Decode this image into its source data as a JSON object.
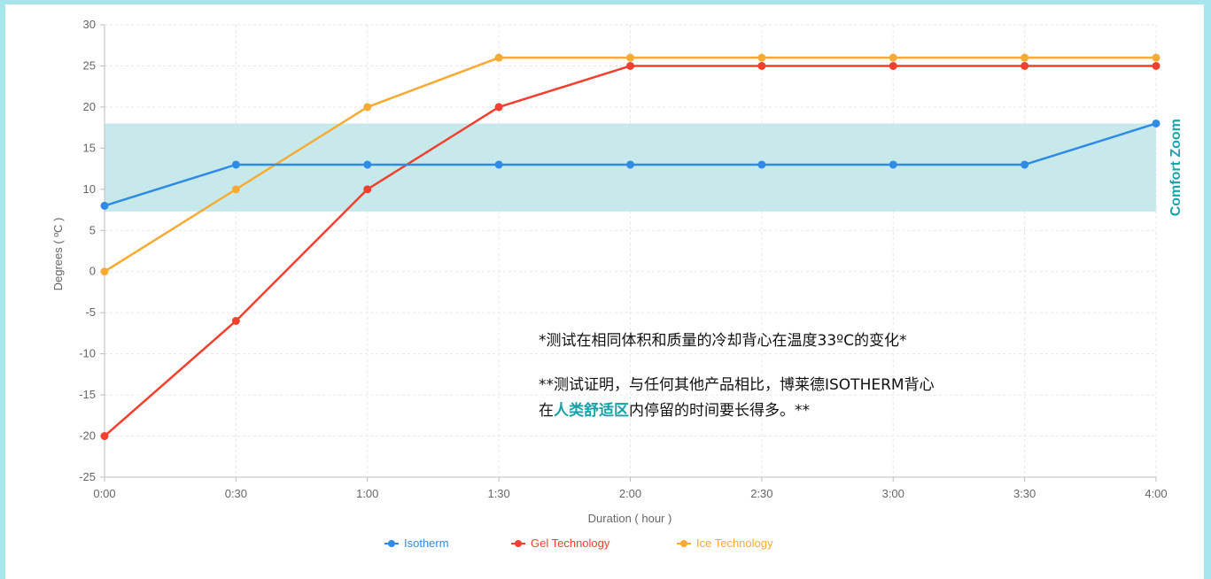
{
  "chart_data": {
    "type": "line",
    "categories": [
      "0:00",
      "0:30",
      "1:00",
      "1:30",
      "2:00",
      "2:30",
      "3:00",
      "3:30",
      "4:00"
    ],
    "series": [
      {
        "name": "Isotherm",
        "color": "#2f8be6",
        "values": [
          8,
          13,
          13,
          13,
          13,
          13,
          13,
          13,
          18
        ]
      },
      {
        "name": "Gel Technology",
        "color": "#f2402e",
        "values": [
          -20,
          -6,
          10,
          20,
          25,
          25,
          25,
          25,
          25
        ]
      },
      {
        "name": "Ice Technology",
        "color": "#f7ab34",
        "values": [
          0,
          10,
          20,
          26,
          26,
          26,
          26,
          26,
          26
        ]
      }
    ],
    "xlabel": "Duration ( hour )",
    "ylabel": "Degrees ( ºC )",
    "ylim": [
      -25,
      30
    ],
    "yticks": [
      30,
      25,
      20,
      15,
      10,
      5,
      0,
      -5,
      -10,
      -15,
      -20,
      -25
    ],
    "grid": true,
    "legend_position": "bottom",
    "comfort_zone": {
      "label": "Comfort Zoom",
      "range": [
        7.3,
        18
      ],
      "color": "#c8e9ec"
    }
  },
  "notes": {
    "line1": "*测试在相同体积和质量的冷却背心在温度33ºC的变化*",
    "line2": "**测试证明，与任何其他产品相比，博莱德ISOTHERM背心",
    "line3_prefix": "在",
    "line3_highlight": "人类舒适区",
    "line3_suffix": "内停留的时间要长得多。**"
  }
}
